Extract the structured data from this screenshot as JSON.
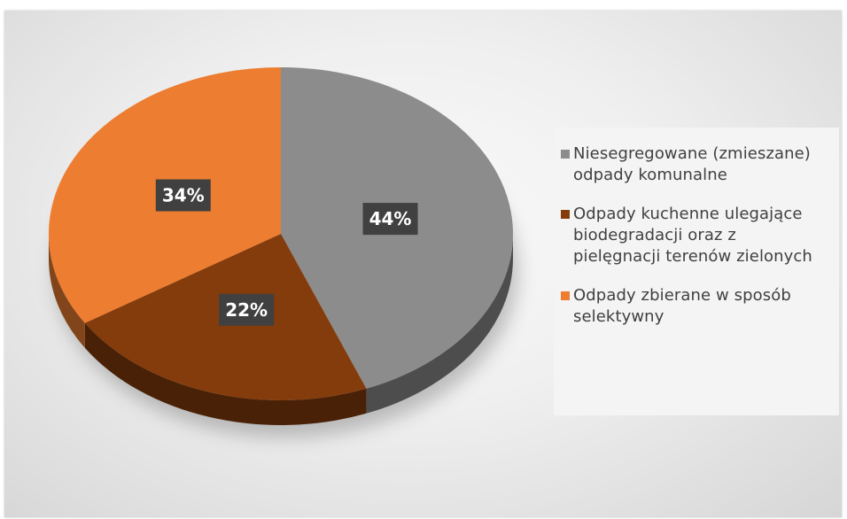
{
  "chart_data": {
    "type": "pie",
    "categories": [
      "Niesegregowane (zmieszane) odpady komunalne",
      "Odpady kuchenne ulegające biodegradacji oraz z pielęgnacji terenów zielonych",
      "Odpady zbierane w sposób selektywny"
    ],
    "values": [
      44,
      22,
      34
    ],
    "data_labels": [
      "44%",
      "22%",
      "34%"
    ],
    "colors": [
      "#8c8c8c",
      "#843c0c",
      "#ed7d31"
    ],
    "legend_position": "right",
    "style": "3d"
  },
  "legend": {
    "items": [
      {
        "lines": [
          "Niesegregowane (zmieszane)",
          "odpady komunalne"
        ],
        "color": "#8c8c8c"
      },
      {
        "lines": [
          "Odpady kuchenne ulegające",
          "biodegradacji oraz z",
          "pielęgnacji terenów zielonych"
        ],
        "color": "#843c0c"
      },
      {
        "lines": [
          "Odpady zbierane w sposób",
          "selektywny"
        ],
        "color": "#ed7d31"
      }
    ]
  }
}
